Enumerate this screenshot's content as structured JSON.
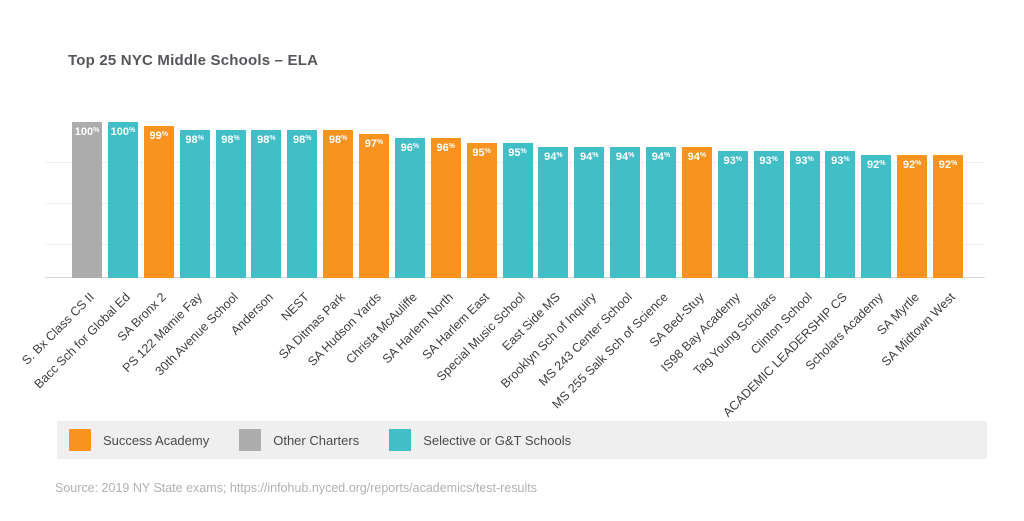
{
  "title": "Top 25 NYC Middle Schools – ELA",
  "source_note": "Source: 2019 NY State exams; https://infohub.nyced.org/reports/academics/test-results",
  "colors": {
    "sa": "#F7931E",
    "charter": "#ACACAC",
    "gt": "#42BEC7",
    "grid": "#EDEDED",
    "axis": "#D8D8D8",
    "title_text": "#55565A",
    "label_text": "#3E3E3E",
    "legend_bg": "#EFEFEF",
    "legend_text": "#4B4B4B",
    "source_text": "#B1B1B1",
    "bar_value_text": "#FFFFFF"
  },
  "legend": {
    "items": [
      {
        "key": "sa",
        "label": "Success Academy"
      },
      {
        "key": "charter",
        "label": "Other Charters"
      },
      {
        "key": "gt",
        "label": "Selective or G&T Schools"
      }
    ]
  },
  "chart_data": {
    "type": "bar",
    "title": "Top 25 NYC Middle Schools – ELA",
    "xlabel": "",
    "ylabel": "",
    "unit": "%",
    "ylim": [
      62,
      100
    ],
    "gridlines": [
      70,
      80,
      90
    ],
    "grid": true,
    "legend_position": "bottom",
    "categories": [
      "S. Bx Class CS II",
      "Bacc Sch for Global Ed",
      "SA Bronx 2",
      "PS 122 Mamie Fay",
      "30th Avenue School",
      "Anderson",
      "NEST",
      "SA Ditmas Park",
      "SA Hudson Yards",
      "Christa McAuliffe",
      "SA Harlem North",
      "SA Harlem East",
      "Special Music School",
      "East Side MS",
      "Brooklyn Sch of Inquiry",
      "MS 243 Center School",
      "MS 255 Salk Sch of Science",
      "SA Bed-Stuy",
      "IS98 Bay Academy",
      "Tag Young Scholars",
      "Clinton School",
      "ACADEMIC LEADERSHIP CS",
      "Scholars Academy",
      "SA Myrtle",
      "SA Midtown West"
    ],
    "values": [
      100,
      100,
      99,
      98,
      98,
      98,
      98,
      98,
      97,
      96,
      96,
      95,
      95,
      94,
      94,
      94,
      94,
      94,
      93,
      93,
      93,
      93,
      92,
      92,
      92
    ],
    "groups": [
      "charter",
      "gt",
      "sa",
      "gt",
      "gt",
      "gt",
      "gt",
      "sa",
      "sa",
      "gt",
      "sa",
      "sa",
      "gt",
      "gt",
      "gt",
      "gt",
      "gt",
      "sa",
      "gt",
      "gt",
      "gt",
      "gt",
      "gt",
      "sa",
      "sa"
    ]
  }
}
